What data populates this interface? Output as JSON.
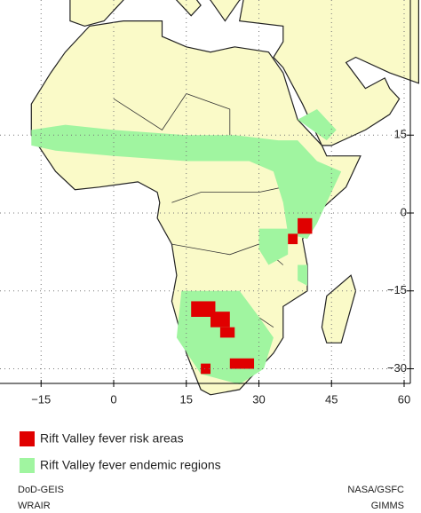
{
  "map": {
    "xticks": [
      {
        "value": -15,
        "label": "−15"
      },
      0,
      15,
      30,
      45,
      60
    ],
    "yticks": [
      15,
      0,
      {
        "value": -15,
        "label": "−15"
      },
      {
        "value": -30,
        "label": "−30"
      }
    ]
  },
  "legend": [
    {
      "label": "Rift Valley fever risk areas",
      "color": "#e00000"
    },
    {
      "label": "Rift Valley fever endemic regions",
      "color": "#a0f5a0"
    }
  ],
  "credits": {
    "left": [
      "DoD-GEIS",
      "WRAIR"
    ],
    "right": [
      "NASA/GSFC",
      "GIMMS"
    ]
  }
}
